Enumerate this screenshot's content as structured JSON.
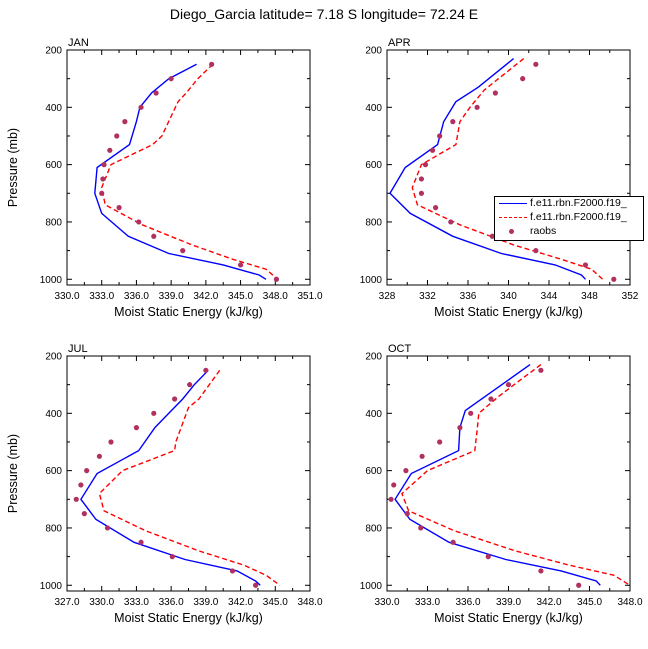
{
  "title": "Diego_Garcia  latitude= 7.18 S longitude= 72.24 E",
  "legend": {
    "items": [
      {
        "label": "f.e11.rbn.F2000.f19_",
        "color": "#0000ff",
        "style": "solid"
      },
      {
        "label": "f.e11.rbn.F2000.f19_",
        "color": "#ff0000",
        "style": "dashed"
      },
      {
        "label": "raobs",
        "color": "#b03060",
        "style": "dot"
      }
    ]
  },
  "chart_data": [
    {
      "type": "line",
      "title": "JAN",
      "xlabel": "Moist Static Energy (kJ/kg)",
      "ylabel": "Pressure (mb)",
      "xlim": [
        330,
        351
      ],
      "xticks": [
        "330.0",
        "333.0",
        "336.0",
        "339.0",
        "342.0",
        "345.0",
        "348.0",
        "351.0"
      ],
      "ylim": [
        200,
        1020
      ],
      "yticks": [
        "200",
        "400",
        "600",
        "800",
        "1000"
      ],
      "series": [
        {
          "color": "#0000ff",
          "style": "solid",
          "points": [
            [
              341.2,
              250
            ],
            [
              338.8,
              300
            ],
            [
              337.3,
              350
            ],
            [
              336.3,
              400
            ],
            [
              336.0,
              450
            ],
            [
              335.4,
              530
            ],
            [
              332.6,
              610
            ],
            [
              332.4,
              700
            ],
            [
              333.0,
              770
            ],
            [
              335.3,
              850
            ],
            [
              338.8,
              910
            ],
            [
              343.5,
              950
            ],
            [
              346.6,
              985
            ],
            [
              347.2,
              1000
            ]
          ]
        },
        {
          "color": "#ff0000",
          "style": "dashed",
          "points": [
            [
              342.6,
              250
            ],
            [
              341.3,
              300
            ],
            [
              340.3,
              350
            ],
            [
              339.6,
              380
            ],
            [
              338.2,
              500
            ],
            [
              337.4,
              530
            ],
            [
              333.8,
              600
            ],
            [
              333.0,
              680
            ],
            [
              333.3,
              740
            ],
            [
              336.5,
              810
            ],
            [
              340.8,
              880
            ],
            [
              344.3,
              930
            ],
            [
              347.2,
              965
            ],
            [
              348.2,
              1000
            ]
          ]
        },
        {
          "color": "#b03060",
          "style": "dot",
          "points": [
            [
              342.5,
              250
            ],
            [
              339.0,
              300
            ],
            [
              337.7,
              350
            ],
            [
              336.4,
              400
            ],
            [
              335.0,
              450
            ],
            [
              334.3,
              500
            ],
            [
              333.7,
              550
            ],
            [
              333.2,
              600
            ],
            [
              333.1,
              650
            ],
            [
              333.0,
              700
            ],
            [
              334.5,
              750
            ],
            [
              336.2,
              800
            ],
            [
              337.5,
              850
            ],
            [
              340.0,
              900
            ],
            [
              345.0,
              950
            ],
            [
              348.1,
              1000
            ]
          ]
        }
      ]
    },
    {
      "type": "line",
      "title": "APR",
      "xlabel": "Moist Static Energy (kJ/kg)",
      "ylabel": "",
      "xlim": [
        328,
        352
      ],
      "xticks": [
        "328",
        "332",
        "336",
        "340",
        "344",
        "348",
        "352"
      ],
      "ylim": [
        200,
        1020
      ],
      "yticks": [
        "200",
        "400",
        "600",
        "800",
        "1000"
      ],
      "series": [
        {
          "color": "#0000ff",
          "style": "solid",
          "points": [
            [
              340.5,
              230
            ],
            [
              337.0,
              330
            ],
            [
              334.8,
              380
            ],
            [
              333.6,
              450
            ],
            [
              333.0,
              530
            ],
            [
              329.8,
              610
            ],
            [
              328.3,
              700
            ],
            [
              330.3,
              770
            ],
            [
              334.5,
              850
            ],
            [
              339.3,
              910
            ],
            [
              344.6,
              950
            ],
            [
              347.2,
              985
            ],
            [
              347.6,
              1000
            ]
          ]
        },
        {
          "color": "#ff0000",
          "style": "dashed",
          "points": [
            [
              341.5,
              230
            ],
            [
              339.0,
              300
            ],
            [
              337.6,
              340
            ],
            [
              336.2,
              400
            ],
            [
              335.2,
              450
            ],
            [
              334.8,
              530
            ],
            [
              331.4,
              600
            ],
            [
              330.5,
              680
            ],
            [
              331.0,
              740
            ],
            [
              335.2,
              810
            ],
            [
              340.5,
              880
            ],
            [
              345.2,
              930
            ],
            [
              348.2,
              965
            ],
            [
              349.3,
              1000
            ]
          ]
        },
        {
          "color": "#b03060",
          "style": "dot",
          "points": [
            [
              342.7,
              250
            ],
            [
              341.4,
              300
            ],
            [
              338.7,
              350
            ],
            [
              336.9,
              400
            ],
            [
              334.5,
              450
            ],
            [
              333.2,
              500
            ],
            [
              332.5,
              550
            ],
            [
              331.8,
              600
            ],
            [
              331.4,
              650
            ],
            [
              331.4,
              700
            ],
            [
              332.8,
              750
            ],
            [
              334.3,
              800
            ],
            [
              338.4,
              850
            ],
            [
              342.7,
              900
            ],
            [
              347.6,
              950
            ],
            [
              350.4,
              1000
            ]
          ]
        }
      ]
    },
    {
      "type": "line",
      "title": "JUL",
      "xlabel": "Moist Static Energy (kJ/kg)",
      "ylabel": "Pressure (mb)",
      "xlim": [
        327,
        348
      ],
      "xticks": [
        "327.0",
        "330.0",
        "333.0",
        "336.0",
        "339.0",
        "342.0",
        "345.0",
        "348.0"
      ],
      "ylim": [
        200,
        1020
      ],
      "yticks": [
        "200",
        "400",
        "600",
        "800",
        "1000"
      ],
      "series": [
        {
          "color": "#0000ff",
          "style": "solid",
          "points": [
            [
              339.2,
              250
            ],
            [
              338.0,
              300
            ],
            [
              337.0,
              350
            ],
            [
              335.8,
              400
            ],
            [
              334.6,
              450
            ],
            [
              333.2,
              530
            ],
            [
              329.6,
              610
            ],
            [
              328.2,
              700
            ],
            [
              329.5,
              770
            ],
            [
              332.8,
              850
            ],
            [
              337.2,
              910
            ],
            [
              341.7,
              950
            ],
            [
              343.3,
              985
            ],
            [
              343.7,
              1000
            ]
          ]
        },
        {
          "color": "#ff0000",
          "style": "dashed",
          "points": [
            [
              340.2,
              250
            ],
            [
              339.3,
              300
            ],
            [
              338.4,
              350
            ],
            [
              337.5,
              380
            ],
            [
              336.4,
              500
            ],
            [
              336.3,
              530
            ],
            [
              331.8,
              600
            ],
            [
              329.8,
              680
            ],
            [
              330.2,
              740
            ],
            [
              333.8,
              810
            ],
            [
              338.4,
              880
            ],
            [
              342.3,
              930
            ],
            [
              344.2,
              965
            ],
            [
              345.4,
              1000
            ]
          ]
        },
        {
          "color": "#b03060",
          "style": "dot",
          "points": [
            [
              339.0,
              250
            ],
            [
              337.6,
              300
            ],
            [
              336.3,
              350
            ],
            [
              334.5,
              400
            ],
            [
              333.0,
              450
            ],
            [
              330.8,
              500
            ],
            [
              329.8,
              550
            ],
            [
              328.7,
              600
            ],
            [
              328.2,
              650
            ],
            [
              327.8,
              700
            ],
            [
              328.5,
              750
            ],
            [
              330.5,
              800
            ],
            [
              333.4,
              850
            ],
            [
              336.1,
              900
            ],
            [
              341.3,
              950
            ],
            [
              343.3,
              1000
            ]
          ]
        }
      ]
    },
    {
      "type": "line",
      "title": "OCT",
      "xlabel": "Moist Static Energy (kJ/kg)",
      "ylabel": "",
      "xlim": [
        330,
        348
      ],
      "xticks": [
        "330.0",
        "333.0",
        "336.0",
        "339.0",
        "342.0",
        "345.0",
        "348.0"
      ],
      "ylim": [
        200,
        1020
      ],
      "yticks": [
        "200",
        "400",
        "600",
        "800",
        "1000"
      ],
      "series": [
        {
          "color": "#0000ff",
          "style": "solid",
          "points": [
            [
              340.6,
              230
            ],
            [
              337.6,
              330
            ],
            [
              335.8,
              390
            ],
            [
              335.4,
              450
            ],
            [
              335.3,
              530
            ],
            [
              331.8,
              610
            ],
            [
              330.6,
              700
            ],
            [
              331.7,
              770
            ],
            [
              334.6,
              850
            ],
            [
              338.8,
              910
            ],
            [
              342.9,
              950
            ],
            [
              345.5,
              985
            ],
            [
              345.8,
              1000
            ]
          ]
        },
        {
          "color": "#ff0000",
          "style": "dashed",
          "points": [
            [
              341.4,
              230
            ],
            [
              339.7,
              290
            ],
            [
              338.3,
              340
            ],
            [
              336.8,
              400
            ],
            [
              336.7,
              450
            ],
            [
              336.5,
              530
            ],
            [
              333.0,
              600
            ],
            [
              331.1,
              680
            ],
            [
              331.6,
              740
            ],
            [
              335.0,
              810
            ],
            [
              339.5,
              880
            ],
            [
              343.5,
              930
            ],
            [
              346.8,
              965
            ],
            [
              348.0,
              1000
            ]
          ]
        },
        {
          "color": "#b03060",
          "style": "dot",
          "points": [
            [
              341.4,
              250
            ],
            [
              339.0,
              300
            ],
            [
              337.7,
              350
            ],
            [
              336.2,
              400
            ],
            [
              335.4,
              450
            ],
            [
              333.9,
              500
            ],
            [
              332.6,
              550
            ],
            [
              331.4,
              600
            ],
            [
              330.5,
              650
            ],
            [
              330.3,
              700
            ],
            [
              331.5,
              750
            ],
            [
              332.5,
              800
            ],
            [
              334.9,
              850
            ],
            [
              337.5,
              900
            ],
            [
              341.4,
              950
            ],
            [
              344.2,
              1000
            ]
          ]
        }
      ]
    }
  ]
}
